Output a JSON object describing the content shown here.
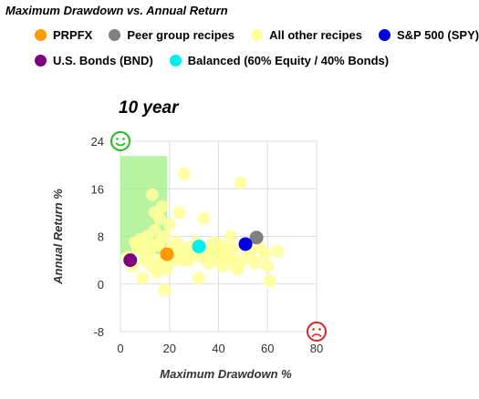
{
  "header": {
    "title": "Maximum Drawdown vs. Annual Return"
  },
  "legend": [
    {
      "label": "PRPFX",
      "color": "#ff9900"
    },
    {
      "label": "Peer group recipes",
      "color": "#808080"
    },
    {
      "label": "All other recipes",
      "color": "#ffff99"
    },
    {
      "label": "S&P 500 (SPY)",
      "color": "#0000dd"
    },
    {
      "label": "U.S. Bonds (BND)",
      "color": "#800080"
    },
    {
      "label": "Balanced (60% Equity / 40% Bonds)",
      "color": "#00eeee"
    }
  ],
  "chart_data": {
    "type": "scatter",
    "title": "10 year",
    "xlabel": "Maximum Drawdown %",
    "ylabel": "Annual Return %",
    "xlim": [
      0,
      80
    ],
    "ylim": [
      -8,
      24
    ],
    "x_ticks": [
      "0",
      "20",
      "40",
      "60",
      "80"
    ],
    "y_ticks": [
      "24",
      "16",
      "8",
      "0",
      "-8"
    ],
    "grid": true,
    "highlight_region": {
      "x": [
        0,
        19
      ],
      "y": [
        5,
        21.5
      ],
      "color": "#99ee77"
    },
    "good_corner_icon": "smiley-face-icon",
    "bad_corner_icon": "sad-face-icon",
    "series": [
      {
        "name": "All other recipes",
        "color": "#ffff99",
        "points": [
          [
            3,
            4.5
          ],
          [
            5,
            3
          ],
          [
            7,
            6
          ],
          [
            8,
            7.5
          ],
          [
            9,
            1
          ],
          [
            10,
            4
          ],
          [
            11,
            8
          ],
          [
            12,
            5
          ],
          [
            13,
            3
          ],
          [
            13,
            15
          ],
          [
            14,
            9
          ],
          [
            14,
            12
          ],
          [
            15,
            2
          ],
          [
            15,
            6.5
          ],
          [
            16,
            11
          ],
          [
            16,
            7
          ],
          [
            17,
            4
          ],
          [
            17,
            13
          ],
          [
            18,
            8
          ],
          [
            18,
            -1
          ],
          [
            19,
            2.5
          ],
          [
            20,
            10
          ],
          [
            21,
            6
          ],
          [
            22,
            4
          ],
          [
            23,
            7
          ],
          [
            24,
            12
          ],
          [
            25,
            5
          ],
          [
            26,
            18.5
          ],
          [
            27,
            6
          ],
          [
            28,
            4
          ],
          [
            30,
            5
          ],
          [
            31,
            7
          ],
          [
            32,
            1
          ],
          [
            33,
            4.5
          ],
          [
            34,
            11
          ],
          [
            35,
            6
          ],
          [
            36,
            3.5
          ],
          [
            37,
            5
          ],
          [
            38,
            7
          ],
          [
            39,
            4
          ],
          [
            40,
            5.5
          ],
          [
            41,
            6.5
          ],
          [
            42,
            3
          ],
          [
            43,
            5
          ],
          [
            44,
            4.5
          ],
          [
            45,
            8
          ],
          [
            46,
            6
          ],
          [
            47,
            3
          ],
          [
            48,
            2.5
          ],
          [
            49,
            17
          ],
          [
            50,
            4
          ],
          [
            52,
            6
          ],
          [
            53,
            5
          ],
          [
            55,
            3.5
          ],
          [
            57,
            6
          ],
          [
            59,
            5
          ],
          [
            60,
            3
          ],
          [
            61,
            0.5
          ],
          [
            64,
            5.5
          ],
          [
            38,
            4.5
          ],
          [
            42,
            6
          ],
          [
            46,
            4
          ],
          [
            30,
            6
          ],
          [
            26,
            4
          ],
          [
            22,
            5
          ],
          [
            16,
            3.5
          ],
          [
            12,
            6.5
          ],
          [
            9,
            5.5
          ],
          [
            6,
            7
          ]
        ]
      },
      {
        "name": "Peer group recipes",
        "color": "#808080",
        "points": [
          [
            55.5,
            7.8
          ]
        ]
      },
      {
        "name": "PRPFX",
        "color": "#ff9900",
        "points": [
          [
            19,
            5
          ]
        ]
      },
      {
        "name": "S&P 500 (SPY)",
        "color": "#0000dd",
        "points": [
          [
            51,
            6.7
          ]
        ]
      },
      {
        "name": "U.S. Bonds (BND)",
        "color": "#800080",
        "points": [
          [
            4,
            4
          ]
        ]
      },
      {
        "name": "Balanced (60% Equity / 40% Bonds)",
        "color": "#00eeee",
        "points": [
          [
            32,
            6.3
          ]
        ]
      }
    ]
  }
}
